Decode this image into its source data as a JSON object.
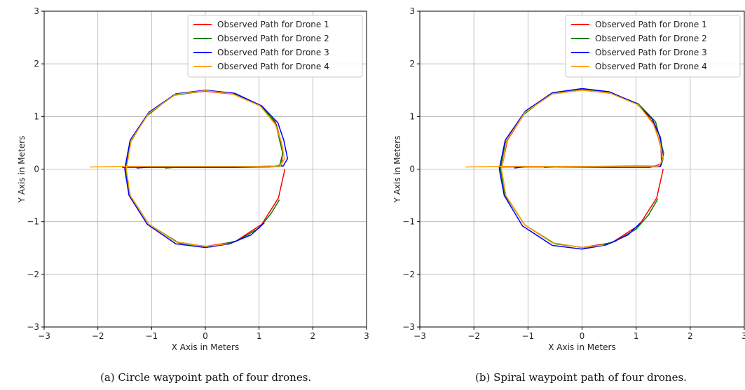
{
  "chart_data": [
    {
      "type": "line",
      "xlabel": "X Axis in Meters",
      "ylabel": "Y Axis in Meters",
      "xlim": [
        -3,
        3
      ],
      "ylim": [
        -3,
        3
      ],
      "x_ticks": [
        "−3",
        "−2",
        "−1",
        "0",
        "1",
        "2",
        "3"
      ],
      "y_ticks": [
        "−3",
        "−2",
        "−1",
        "0",
        "1",
        "2",
        "3"
      ],
      "grid": true,
      "legend_position": "top-right",
      "series": [
        {
          "name": "Observed Path for Drone 1",
          "color": "#ff0000",
          "points": [
            [
              -1.55,
              0.03
            ],
            [
              -0.5,
              0.03
            ],
            [
              0.6,
              0.03
            ],
            [
              1.2,
              0.04
            ],
            [
              1.42,
              0.08
            ],
            [
              1.44,
              0.4
            ],
            [
              1.32,
              0.85
            ],
            [
              1.05,
              1.2
            ],
            [
              0.55,
              1.42
            ],
            [
              0.0,
              1.48
            ],
            [
              -0.55,
              1.42
            ],
            [
              -1.05,
              1.07
            ],
            [
              -1.38,
              0.55
            ],
            [
              -1.48,
              0.0
            ],
            [
              -1.4,
              -0.5
            ],
            [
              -1.05,
              -1.05
            ],
            [
              -0.55,
              -1.38
            ],
            [
              0.0,
              -1.47
            ],
            [
              0.55,
              -1.38
            ],
            [
              1.05,
              -1.05
            ],
            [
              1.36,
              -0.55
            ],
            [
              1.48,
              0.0
            ]
          ]
        },
        {
          "name": "Observed Path for Drone 2",
          "color": "#008000",
          "points": [
            [
              -0.75,
              0.02
            ],
            [
              -0.4,
              0.04
            ],
            [
              0.2,
              0.04
            ],
            [
              1.38,
              0.05
            ],
            [
              1.44,
              0.3
            ],
            [
              1.3,
              0.9
            ],
            [
              1.0,
              1.22
            ],
            [
              0.5,
              1.44
            ],
            [
              0.0,
              1.49
            ],
            [
              -0.6,
              1.4
            ],
            [
              -1.1,
              1.0
            ],
            [
              -1.4,
              0.5
            ],
            [
              -1.49,
              0.0
            ],
            [
              -1.4,
              -0.5
            ],
            [
              -1.05,
              -1.05
            ],
            [
              -0.5,
              -1.4
            ],
            [
              0.1,
              -1.48
            ],
            [
              0.6,
              -1.36
            ],
            [
              1.0,
              -1.12
            ],
            [
              1.22,
              -0.85
            ],
            [
              1.38,
              -0.58
            ]
          ]
        },
        {
          "name": "Observed Path for Drone 3",
          "color": "#0000ff",
          "points": [
            [
              -1.28,
              0.02
            ],
            [
              -1.0,
              0.04
            ],
            [
              -0.3,
              0.04
            ],
            [
              0.5,
              0.04
            ],
            [
              1.45,
              0.06
            ],
            [
              1.53,
              0.2
            ],
            [
              1.46,
              0.55
            ],
            [
              1.35,
              0.88
            ],
            [
              1.05,
              1.2
            ],
            [
              0.55,
              1.44
            ],
            [
              0.0,
              1.5
            ],
            [
              -0.55,
              1.43
            ],
            [
              -1.05,
              1.08
            ],
            [
              -1.4,
              0.55
            ],
            [
              -1.5,
              0.0
            ],
            [
              -1.42,
              -0.5
            ],
            [
              -1.08,
              -1.05
            ],
            [
              -0.55,
              -1.42
            ],
            [
              0.0,
              -1.49
            ],
            [
              0.45,
              -1.42
            ],
            [
              0.85,
              -1.25
            ],
            [
              1.1,
              -1.02
            ]
          ]
        },
        {
          "name": "Observed Path for Drone 4",
          "color": "#ffa500",
          "points": [
            [
              -2.15,
              0.04
            ],
            [
              -1.6,
              0.05
            ],
            [
              -1.0,
              0.05
            ],
            [
              0.0,
              0.05
            ],
            [
              1.0,
              0.05
            ],
            [
              1.4,
              0.06
            ],
            [
              1.47,
              0.2
            ],
            [
              1.42,
              0.5
            ],
            [
              1.3,
              0.85
            ],
            [
              1.02,
              1.2
            ],
            [
              0.5,
              1.43
            ],
            [
              0.0,
              1.49
            ],
            [
              -0.55,
              1.42
            ],
            [
              -1.05,
              1.06
            ],
            [
              -1.38,
              0.55
            ],
            [
              -1.47,
              0.0
            ],
            [
              -1.4,
              -0.5
            ],
            [
              -1.05,
              -1.05
            ],
            [
              -0.55,
              -1.38
            ],
            [
              0.0,
              -1.47
            ],
            [
              0.4,
              -1.42
            ]
          ]
        }
      ]
    },
    {
      "type": "line",
      "xlabel": "X Axis in Meters",
      "ylabel": "Y Axis in Meters",
      "xlim": [
        -3,
        3
      ],
      "ylim": [
        -3,
        3
      ],
      "x_ticks": [
        "−3",
        "−2",
        "−1",
        "0",
        "1",
        "2",
        "3"
      ],
      "y_ticks": [
        "−3",
        "−2",
        "−1",
        "0",
        "1",
        "2",
        "3"
      ],
      "grid": true,
      "legend_position": "top-right",
      "series": [
        {
          "name": "Observed Path for Drone 1",
          "color": "#ff0000",
          "points": [
            [
              -1.55,
              0.04
            ],
            [
              -0.5,
              0.04
            ],
            [
              0.6,
              0.03
            ],
            [
              1.25,
              0.03
            ],
            [
              1.47,
              0.1
            ],
            [
              1.46,
              0.4
            ],
            [
              1.34,
              0.85
            ],
            [
              1.05,
              1.22
            ],
            [
              0.55,
              1.44
            ],
            [
              0.0,
              1.5
            ],
            [
              -0.55,
              1.43
            ],
            [
              -1.05,
              1.08
            ],
            [
              -1.38,
              0.55
            ],
            [
              -1.49,
              0.0
            ],
            [
              -1.41,
              -0.5
            ],
            [
              -1.06,
              -1.06
            ],
            [
              -0.55,
              -1.4
            ],
            [
              0.0,
              -1.49
            ],
            [
              0.55,
              -1.4
            ],
            [
              1.06,
              -1.06
            ],
            [
              1.38,
              -0.55
            ],
            [
              1.5,
              0.0
            ]
          ]
        },
        {
          "name": "Observed Path for Drone 2",
          "color": "#008000",
          "points": [
            [
              -0.7,
              0.03
            ],
            [
              -0.4,
              0.05
            ],
            [
              0.2,
              0.05
            ],
            [
              1.45,
              0.06
            ],
            [
              1.51,
              0.3
            ],
            [
              1.36,
              0.9
            ],
            [
              1.04,
              1.24
            ],
            [
              0.5,
              1.46
            ],
            [
              0.0,
              1.51
            ],
            [
              -0.6,
              1.42
            ],
            [
              -1.1,
              1.02
            ],
            [
              -1.42,
              0.5
            ],
            [
              -1.51,
              0.0
            ],
            [
              -1.42,
              -0.5
            ],
            [
              -1.06,
              -1.06
            ],
            [
              -0.5,
              -1.42
            ],
            [
              0.1,
              -1.5
            ],
            [
              0.6,
              -1.38
            ],
            [
              1.0,
              -1.14
            ],
            [
              1.23,
              -0.87
            ],
            [
              1.4,
              -0.57
            ]
          ]
        },
        {
          "name": "Observed Path for Drone 3",
          "color": "#0000ff",
          "points": [
            [
              -1.25,
              0.02
            ],
            [
              -1.0,
              0.05
            ],
            [
              -0.3,
              0.05
            ],
            [
              0.5,
              0.04
            ],
            [
              1.45,
              0.05
            ],
            [
              1.5,
              0.2
            ],
            [
              1.45,
              0.6
            ],
            [
              1.3,
              0.95
            ],
            [
              1.0,
              1.25
            ],
            [
              0.5,
              1.47
            ],
            [
              0.0,
              1.53
            ],
            [
              -0.55,
              1.45
            ],
            [
              -1.05,
              1.1
            ],
            [
              -1.42,
              0.55
            ],
            [
              -1.53,
              0.0
            ],
            [
              -1.44,
              -0.5
            ],
            [
              -1.1,
              -1.08
            ],
            [
              -0.55,
              -1.45
            ],
            [
              0.0,
              -1.52
            ],
            [
              0.45,
              -1.44
            ],
            [
              0.85,
              -1.25
            ],
            [
              1.08,
              -1.02
            ]
          ]
        },
        {
          "name": "Observed Path for Drone 4",
          "color": "#ffa500",
          "points": [
            [
              -2.15,
              0.04
            ],
            [
              -1.6,
              0.05
            ],
            [
              -1.0,
              0.05
            ],
            [
              0.0,
              0.05
            ],
            [
              1.0,
              0.05
            ],
            [
              1.42,
              0.06
            ],
            [
              1.5,
              0.2
            ],
            [
              1.44,
              0.5
            ],
            [
              1.32,
              0.85
            ],
            [
              1.04,
              1.22
            ],
            [
              0.5,
              1.45
            ],
            [
              0.0,
              1.5
            ],
            [
              -0.55,
              1.43
            ],
            [
              -1.05,
              1.08
            ],
            [
              -1.39,
              0.55
            ],
            [
              -1.49,
              0.0
            ],
            [
              -1.41,
              -0.5
            ],
            [
              -1.06,
              -1.06
            ],
            [
              -0.55,
              -1.4
            ],
            [
              0.0,
              -1.49
            ],
            [
              0.4,
              -1.44
            ]
          ]
        }
      ]
    }
  ],
  "captions": {
    "a": "(a) Circle waypoint path of four drones.",
    "b": "(b) Spiral waypoint path of four drones."
  }
}
